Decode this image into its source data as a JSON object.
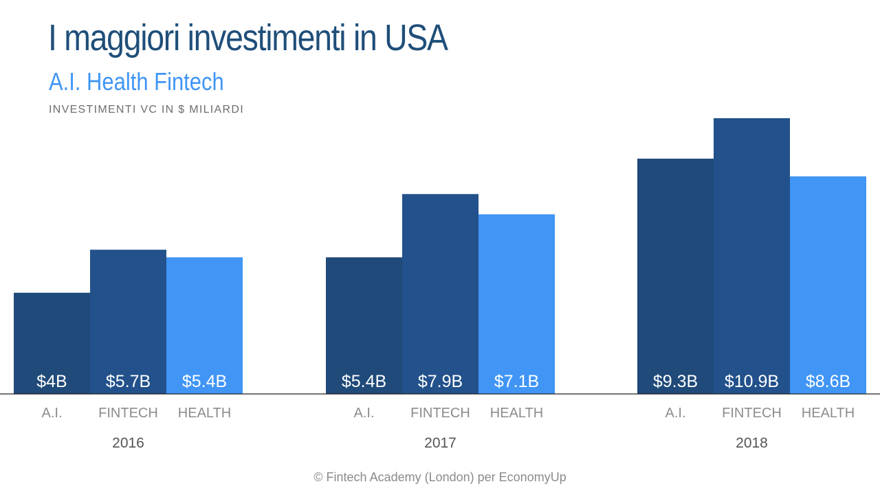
{
  "header": {
    "title": "I maggiori investimenti in USA",
    "subtitle": "A.I. Health Fintech",
    "unit_label": "INVESTIMENTI VC IN $ MILIARDI"
  },
  "footer": {
    "source": "© Fintech Academy (London) per EconomyUp"
  },
  "colors": {
    "ai": "#1f4a79",
    "fintech": "#22518b",
    "health": "#4095f5",
    "title": "#1f4e79",
    "subtitle": "#4095f5"
  },
  "chart_data": {
    "type": "bar",
    "title": "I maggiori investimenti in USA",
    "subtitle": "A.I. Health Fintech",
    "ylabel": "INVESTIMENTI VC IN $ MILIARDI",
    "ylim": [
      0,
      11
    ],
    "grid": false,
    "legend": "none",
    "categories": [
      "2016",
      "2017",
      "2018"
    ],
    "series": [
      {
        "name": "A.I.",
        "values": [
          4,
          5.4,
          9.3
        ],
        "labels": [
          "$4B",
          "$5.4B",
          "$9.3B"
        ]
      },
      {
        "name": "FINTECH",
        "values": [
          5.7,
          7.9,
          10.9
        ],
        "labels": [
          "$5.7B",
          "$7.9B",
          "$10.9B"
        ]
      },
      {
        "name": "HEALTH",
        "values": [
          5.4,
          7.1,
          8.6
        ],
        "labels": [
          "$5.4B",
          "$7.1B",
          "$8.6B"
        ]
      }
    ]
  }
}
